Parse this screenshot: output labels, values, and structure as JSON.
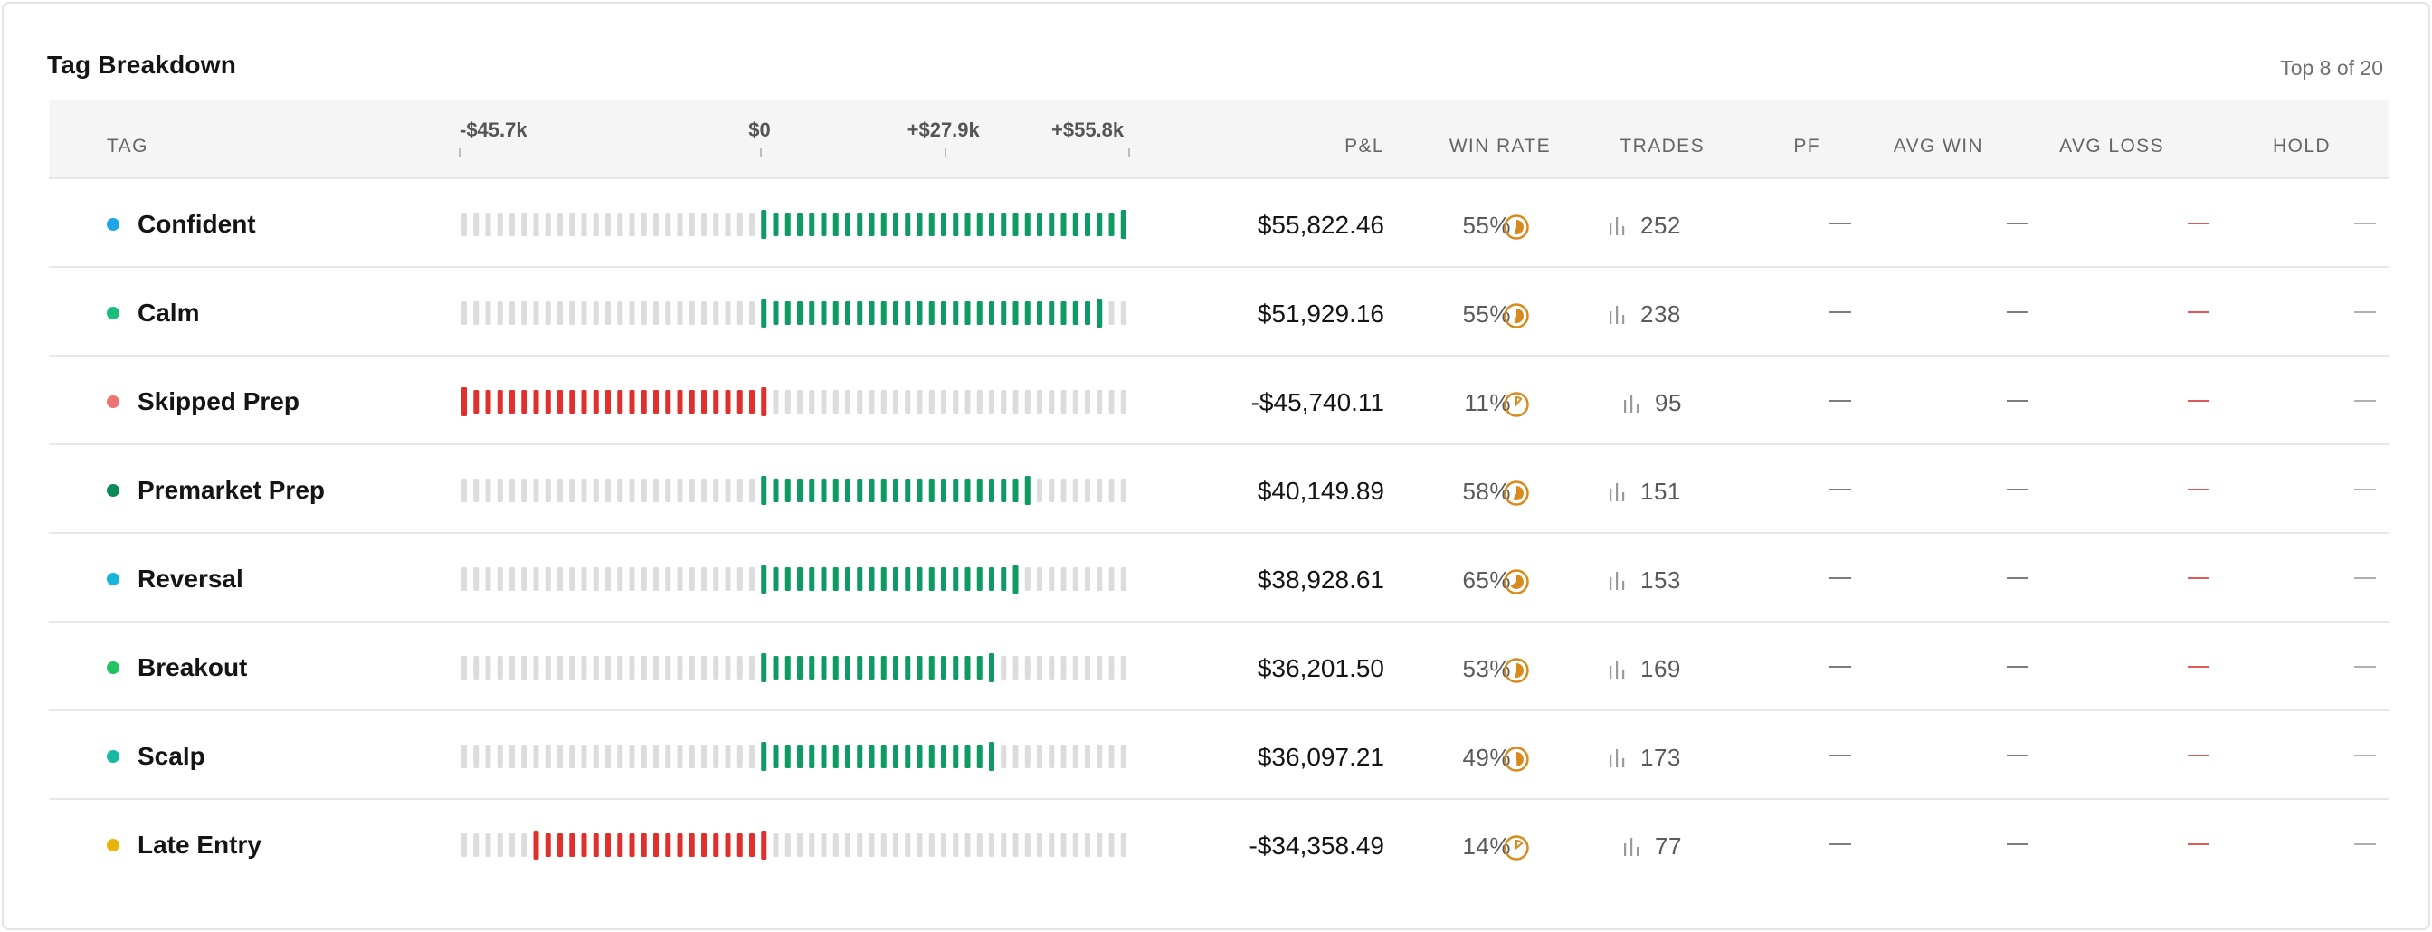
{
  "card": {
    "title": "Tag Breakdown",
    "meta": "Top 8 of 20"
  },
  "columns": {
    "tag": "TAG",
    "pnl": "P&L",
    "win_rate": "WIN RATE",
    "trades": "TRADES",
    "pf": "PF",
    "avg_win": "AVG WIN",
    "avg_loss": "AVG LOSS",
    "hold": "HOLD"
  },
  "axis": {
    "min": -45700,
    "max": 55800,
    "labels": [
      {
        "text": "-$45.7k",
        "value": -45700
      },
      {
        "text": "$0",
        "value": 0
      },
      {
        "text": "+$27.9k",
        "value": 27900
      },
      {
        "text": "+$55.8k",
        "value": 55800
      }
    ]
  },
  "colors": {
    "positive": "#0f9a64",
    "negative": "#e0302e",
    "empty": "#dcdcdc",
    "pie": "#d98a1c"
  },
  "placeholders": {
    "pf": "—",
    "avg_win": "—",
    "avg_loss": "—",
    "hold": "—"
  },
  "rows": [
    {
      "tag": "Confident",
      "dot_color": "#1ea5e8",
      "pnl": 55822.46,
      "pnl_label": "$55,822.46",
      "win_rate": 55,
      "win_rate_label": "55%",
      "trades": "252"
    },
    {
      "tag": "Calm",
      "dot_color": "#1bbd7a",
      "pnl": 51929.16,
      "pnl_label": "$51,929.16",
      "win_rate": 55,
      "win_rate_label": "55%",
      "trades": "238"
    },
    {
      "tag": "Skipped Prep",
      "dot_color": "#f07373",
      "pnl": -45740.11,
      "pnl_label": "-$45,740.11",
      "win_rate": 11,
      "win_rate_label": "11%",
      "trades": "95"
    },
    {
      "tag": "Premarket Prep",
      "dot_color": "#0c8a58",
      "pnl": 40149.89,
      "pnl_label": "$40,149.89",
      "win_rate": 58,
      "win_rate_label": "58%",
      "trades": "151"
    },
    {
      "tag": "Reversal",
      "dot_color": "#16b6da",
      "pnl": 38928.61,
      "pnl_label": "$38,928.61",
      "win_rate": 65,
      "win_rate_label": "65%",
      "trades": "153"
    },
    {
      "tag": "Breakout",
      "dot_color": "#22c25e",
      "pnl": 36201.5,
      "pnl_label": "$36,201.50",
      "win_rate": 53,
      "win_rate_label": "53%",
      "trades": "169"
    },
    {
      "tag": "Scalp",
      "dot_color": "#17b8a6",
      "pnl": 36097.21,
      "pnl_label": "$36,097.21",
      "win_rate": 49,
      "win_rate_label": "49%",
      "trades": "173"
    },
    {
      "tag": "Late Entry",
      "dot_color": "#eab308",
      "pnl": -34358.49,
      "pnl_label": "-$34,358.49",
      "win_rate": 14,
      "win_rate_label": "14%",
      "trades": "77"
    }
  ]
}
